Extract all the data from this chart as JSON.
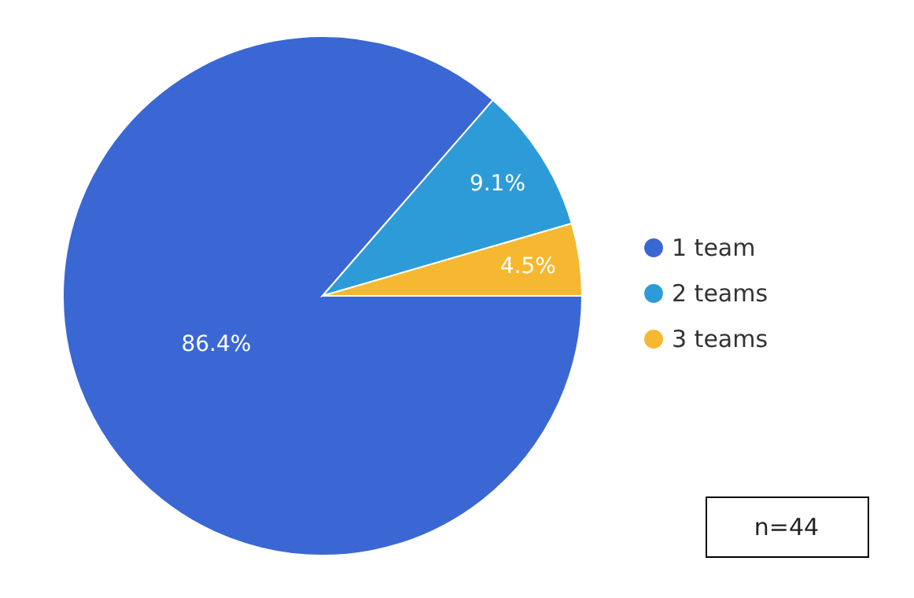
{
  "chart_data": {
    "type": "pie",
    "categories": [
      "1 team",
      "2 teams",
      "3 teams"
    ],
    "values": [
      86.4,
      9.1,
      4.5
    ],
    "colors": [
      "#3a67d4",
      "#2e9bd9",
      "#f6b830"
    ],
    "value_labels": [
      "86.4%",
      "9.1%",
      "4.5%"
    ],
    "legend": "right",
    "annotations": [
      "n=44"
    ]
  }
}
